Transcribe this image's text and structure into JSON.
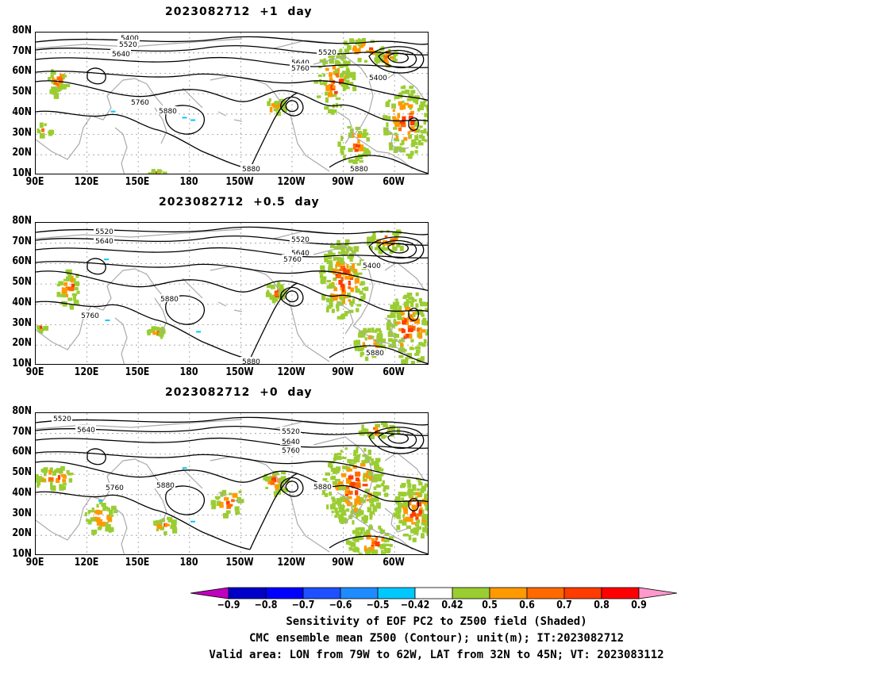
{
  "panels": [
    {
      "title": "2023082712  +1  day"
    },
    {
      "title": "2023082712  +0.5  day"
    },
    {
      "title": "2023082712  +0  day"
    }
  ],
  "axes": {
    "y_labels": [
      "80N",
      "70N",
      "60N",
      "50N",
      "40N",
      "30N",
      "20N",
      "10N"
    ],
    "x_labels": [
      "90E",
      "120E",
      "150E",
      "180",
      "150W",
      "120W",
      "90W",
      "60W"
    ]
  },
  "contour_labels": {
    "p0": [
      "5400",
      "5520",
      "5640",
      "5520",
      "5640",
      "5760",
      "5400",
      "5760",
      "5880",
      "5880",
      "5880"
    ],
    "p1": [
      "5520",
      "5640",
      "5520",
      "5640",
      "5760",
      "5400",
      "5880",
      "5760",
      "5880",
      "5880"
    ],
    "p2": [
      "5520",
      "5640",
      "5520",
      "5640",
      "5760",
      "5760",
      "5880",
      "5880"
    ]
  },
  "colorbar": {
    "labels": [
      "−0.9",
      "−0.8",
      "−0.7",
      "−0.6",
      "−0.5",
      "−0.42",
      "0.42",
      "0.5",
      "0.6",
      "0.7",
      "0.8",
      "0.9"
    ],
    "colors": [
      "#c000c0",
      "#0000c8",
      "#0000ff",
      "#1e50ff",
      "#1e8cff",
      "#00c8ff",
      "#ffffff",
      "#9acd32",
      "#ff9900",
      "#ff6a00",
      "#ff3c00",
      "#ff0000",
      "#ff99cc"
    ]
  },
  "caption": {
    "line1": "Sensitivity of EOF PC2 to Z500 field (Shaded)",
    "line2": "CMC ensemble mean Z500 (Contour); unit(m); IT:2023082712",
    "line3": "Valid area: LON from 79W to 62W, LAT from 32N to 45N; VT: 2023083112"
  }
}
